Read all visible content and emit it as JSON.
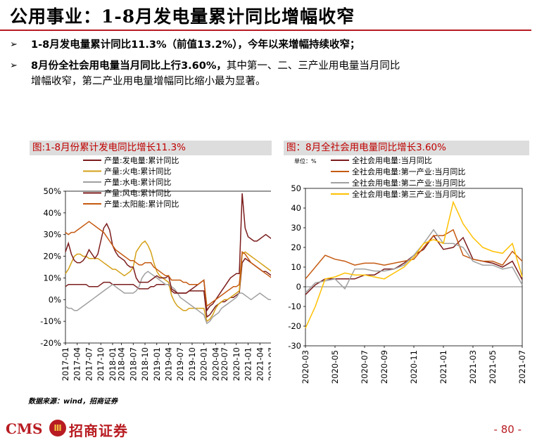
{
  "header": {
    "title": "公用事业：1-8月发电量累计同比增幅收窄"
  },
  "bullets": [
    {
      "lines": [
        "1-8月发电量累计同比11.3%（前值13.2%），今年以来增幅持续收窄；"
      ]
    },
    {
      "bold": "8月份全社会用电量当月同比上行3.60%，",
      "rest": "其中第一、二、三产业用电量当月同比",
      "line2": "增幅收窄，第二产业用电量增幅同比缩小最为显著。"
    }
  ],
  "charts": {
    "left_title": "图:1-8月份累计发电同比增长11.3%",
    "right_title": "图：8月全社会用电量同比增长3.60%"
  },
  "chart_data": [
    {
      "type": "line",
      "title": "图:1-8月份累计发电同比增长11.3%",
      "ylim": [
        -20,
        50
      ],
      "yticks": [
        "50%",
        "40%",
        "30%",
        "20%",
        "10%",
        "0%",
        "-10%",
        "-20%"
      ],
      "xticks": [
        "2017-01",
        "2017-04",
        "2017-07",
        "2017-10",
        "2018-01",
        "2018-04",
        "2018-07",
        "2018-10",
        "2019-01",
        "2019-04",
        "2019-07",
        "2019-10",
        "2020-01",
        "2020-04",
        "2020-07",
        "2020-10",
        "2021-01",
        "2021-04",
        "2021-07"
      ],
      "series": [
        {
          "name": "产量:发电量:累计同比",
          "color": "#7b1c1c",
          "values": [
            6,
            7,
            7,
            7,
            7,
            7,
            7,
            7,
            6,
            6,
            6,
            6,
            7,
            8,
            8,
            8,
            7,
            7,
            7,
            7,
            7,
            7,
            7,
            7,
            6,
            5,
            5,
            5,
            5,
            6,
            6,
            7,
            7,
            7,
            7,
            7,
            4,
            3,
            3,
            3,
            3,
            3,
            4,
            4,
            4,
            4,
            4,
            4,
            -8,
            -7,
            -5,
            -3,
            -2,
            -1,
            -1,
            0,
            1,
            1,
            2,
            3,
            17,
            19,
            18,
            17,
            16,
            15,
            14,
            13,
            13,
            12,
            11
          ]
        },
        {
          "name": "产量:火电:累计同比",
          "color": "#d4a017",
          "values": [
            12,
            14,
            17,
            20,
            21,
            21,
            20,
            20,
            19,
            19,
            19,
            19,
            18,
            17,
            16,
            15,
            14,
            14,
            13,
            12,
            11,
            12,
            13,
            15,
            22,
            24,
            26,
            27,
            25,
            22,
            17,
            13,
            11,
            10,
            9,
            8,
            2,
            -1,
            -3,
            -4,
            -5,
            -5,
            -4,
            -4,
            -4,
            -4,
            -4,
            -4,
            -10,
            -9,
            -7,
            -4,
            -2,
            -1,
            0,
            0,
            1,
            2,
            3,
            4,
            21,
            22,
            21,
            20,
            19,
            18,
            17,
            16,
            15,
            14,
            13
          ]
        },
        {
          "name": "产量:水电:累计同比",
          "color": "#a0a0a0",
          "values": [
            -3,
            -4,
            -4,
            -5,
            -5,
            -4,
            -3,
            -2,
            -1,
            0,
            1,
            2,
            3,
            4,
            5,
            6,
            7,
            6,
            5,
            4,
            3,
            3,
            3,
            3,
            4,
            6,
            10,
            12,
            13,
            12,
            11,
            10,
            9,
            8,
            7,
            7,
            6,
            5,
            3,
            1,
            0,
            -1,
            -2,
            -3,
            -4,
            -5,
            -6,
            -7,
            -11,
            -10,
            -8,
            -7,
            -6,
            -4,
            -3,
            -2,
            -1,
            0,
            1,
            3,
            3,
            2,
            1,
            0,
            1,
            2,
            3,
            2,
            1,
            0,
            0
          ]
        },
        {
          "name": "产量:风电:累计同比",
          "color": "#7b1c1c",
          "values": [
            22,
            26,
            21,
            18,
            17,
            17,
            18,
            20,
            23,
            21,
            19,
            21,
            27,
            33,
            35,
            32,
            25,
            22,
            20,
            19,
            18,
            16,
            15,
            15,
            10,
            8,
            8,
            8,
            8,
            9,
            10,
            11,
            10,
            10,
            10,
            11,
            5,
            4,
            3,
            3,
            3,
            3,
            4,
            5,
            6,
            7,
            8,
            9,
            -5,
            -3,
            -2,
            0,
            2,
            4,
            6,
            8,
            10,
            11,
            12,
            12,
            49,
            33,
            29,
            28,
            27,
            27,
            28,
            29,
            30,
            29,
            28
          ]
        },
        {
          "name": "产量:太阳能:累计同比",
          "color": "#c55a11",
          "values": [
            31,
            30,
            31,
            31,
            32,
            33,
            34,
            35,
            36,
            35,
            34,
            33,
            32,
            31,
            29,
            27,
            25,
            23,
            22,
            21,
            20,
            19,
            18,
            18,
            17,
            16,
            16,
            17,
            17,
            17,
            15,
            14,
            13,
            12,
            11,
            11,
            9,
            9,
            9,
            9,
            8,
            8,
            7,
            7,
            7,
            7,
            8,
            9,
            -3,
            -2,
            -1,
            0,
            1,
            2,
            3,
            4,
            5,
            6,
            6,
            7,
            22,
            21,
            19,
            17,
            16,
            15,
            14,
            13,
            12,
            11,
            10
          ]
        }
      ]
    },
    {
      "type": "line",
      "title": "图：8月全社会用电量同比增长3.60%",
      "unit": "单位：%",
      "ylim": [
        -30,
        50
      ],
      "yticks": [
        "50",
        "40",
        "30",
        "20",
        "10",
        "0",
        "-10",
        "-20",
        "-30"
      ],
      "xticks": [
        "2020-03",
        "2020-05",
        "2020-07",
        "2020-09",
        "2020-11",
        "2021-01",
        "2021-03",
        "2021-05",
        "2021-07"
      ],
      "series": [
        {
          "name": "全社会用电量:当月同比",
          "color": "#7b1c1c",
          "values": [
            -4,
            1,
            4,
            4,
            4,
            4,
            6,
            6,
            9,
            9,
            12,
            16,
            19,
            26,
            19,
            20,
            25,
            14,
            13,
            12,
            10,
            13,
            3.6
          ]
        },
        {
          "name": "全社会用电量:第一产业:当月同比",
          "color": "#c55a11",
          "values": [
            4,
            10,
            16,
            14,
            13,
            11,
            12,
            12,
            11,
            12,
            13,
            14,
            20,
            26,
            26,
            29,
            16,
            14,
            13,
            13,
            11,
            18,
            13
          ]
        },
        {
          "name": "全社会用电量:第二产业:当月同比",
          "color": "#a0a0a0",
          "values": [
            -3,
            2,
            3,
            4,
            -1,
            9,
            9,
            8,
            8,
            9,
            11,
            16,
            22,
            29,
            22,
            22,
            20,
            13,
            11,
            11,
            9,
            10,
            1
          ]
        },
        {
          "name": "全社会用电量:第三产业:当月同比",
          "color": "#ffc000",
          "values": [
            -21,
            -10,
            4,
            5,
            7,
            6,
            6,
            5,
            4,
            7,
            10,
            15,
            22,
            24,
            22,
            43,
            32,
            25,
            20,
            18,
            17,
            22,
            5
          ]
        }
      ]
    }
  ],
  "source": "数据来源：wind，招商证券",
  "footer": {
    "logo_latin": "CMS",
    "logo_emblem": "Ⅲ",
    "logo_cn": "招商证券",
    "page": "- 80 -"
  }
}
